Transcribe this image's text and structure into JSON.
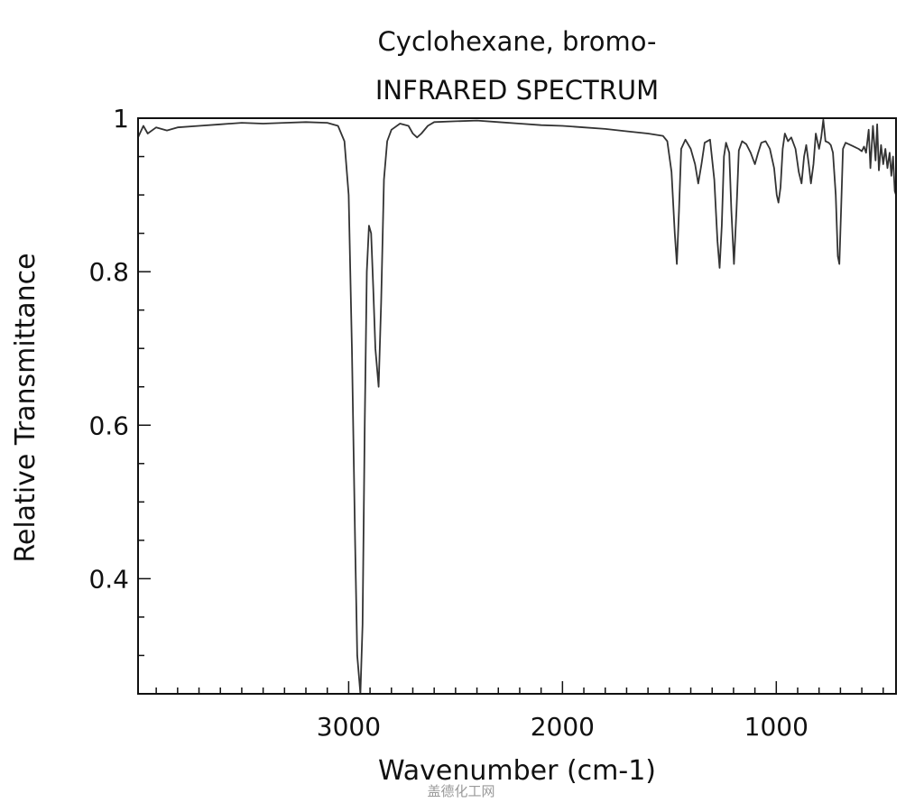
{
  "chart_data": {
    "type": "line",
    "title": "Cyclohexane, bromo-",
    "subtitle": "INFRARED SPECTRUM",
    "xlabel": "Wavenumber (cm-1)",
    "ylabel": "Relative Transmittance",
    "x_reversed": true,
    "xlim": [
      3985,
      440
    ],
    "ylim": [
      0.25,
      1.0
    ],
    "x_ticks": [
      {
        "value": 3000,
        "label": "3000"
      },
      {
        "value": 2000,
        "label": "2000"
      },
      {
        "value": 1000,
        "label": "1000"
      }
    ],
    "y_ticks": [
      {
        "value": 1.0,
        "label": "1"
      },
      {
        "value": 0.8,
        "label": "0.8"
      },
      {
        "value": 0.6,
        "label": "0.6"
      },
      {
        "value": 0.4,
        "label": "0.4"
      }
    ],
    "x_minor_step": 100,
    "y_minor_step": 0.05,
    "grid": false,
    "legend": "none",
    "line_color": "#333333",
    "series": [
      {
        "points": [
          [
            3985,
            0.975
          ],
          [
            3960,
            0.99
          ],
          [
            3940,
            0.98
          ],
          [
            3900,
            0.988
          ],
          [
            3850,
            0.984
          ],
          [
            3800,
            0.988
          ],
          [
            3700,
            0.99
          ],
          [
            3600,
            0.992
          ],
          [
            3500,
            0.994
          ],
          [
            3400,
            0.993
          ],
          [
            3300,
            0.994
          ],
          [
            3200,
            0.995
          ],
          [
            3100,
            0.994
          ],
          [
            3050,
            0.99
          ],
          [
            3020,
            0.97
          ],
          [
            3000,
            0.9
          ],
          [
            2985,
            0.7
          ],
          [
            2970,
            0.45
          ],
          [
            2960,
            0.3
          ],
          [
            2945,
            0.25
          ],
          [
            2935,
            0.34
          ],
          [
            2925,
            0.6
          ],
          [
            2915,
            0.8
          ],
          [
            2905,
            0.86
          ],
          [
            2895,
            0.85
          ],
          [
            2885,
            0.78
          ],
          [
            2875,
            0.7
          ],
          [
            2860,
            0.65
          ],
          [
            2848,
            0.76
          ],
          [
            2835,
            0.92
          ],
          [
            2820,
            0.97
          ],
          [
            2800,
            0.985
          ],
          [
            2760,
            0.993
          ],
          [
            2720,
            0.99
          ],
          [
            2700,
            0.98
          ],
          [
            2680,
            0.975
          ],
          [
            2660,
            0.98
          ],
          [
            2630,
            0.99
          ],
          [
            2600,
            0.995
          ],
          [
            2500,
            0.996
          ],
          [
            2400,
            0.997
          ],
          [
            2300,
            0.995
          ],
          [
            2200,
            0.993
          ],
          [
            2100,
            0.991
          ],
          [
            2000,
            0.99
          ],
          [
            1900,
            0.988
          ],
          [
            1800,
            0.986
          ],
          [
            1700,
            0.983
          ],
          [
            1600,
            0.98
          ],
          [
            1530,
            0.977
          ],
          [
            1510,
            0.97
          ],
          [
            1490,
            0.93
          ],
          [
            1475,
            0.85
          ],
          [
            1465,
            0.81
          ],
          [
            1455,
            0.88
          ],
          [
            1445,
            0.96
          ],
          [
            1425,
            0.972
          ],
          [
            1400,
            0.96
          ],
          [
            1380,
            0.94
          ],
          [
            1365,
            0.915
          ],
          [
            1350,
            0.94
          ],
          [
            1335,
            0.968
          ],
          [
            1310,
            0.972
          ],
          [
            1290,
            0.92
          ],
          [
            1275,
            0.84
          ],
          [
            1265,
            0.805
          ],
          [
            1255,
            0.86
          ],
          [
            1245,
            0.95
          ],
          [
            1235,
            0.968
          ],
          [
            1220,
            0.955
          ],
          [
            1210,
            0.88
          ],
          [
            1198,
            0.81
          ],
          [
            1186,
            0.88
          ],
          [
            1175,
            0.958
          ],
          [
            1160,
            0.97
          ],
          [
            1140,
            0.966
          ],
          [
            1120,
            0.955
          ],
          [
            1100,
            0.94
          ],
          [
            1085,
            0.955
          ],
          [
            1070,
            0.968
          ],
          [
            1050,
            0.97
          ],
          [
            1030,
            0.96
          ],
          [
            1010,
            0.935
          ],
          [
            998,
            0.9
          ],
          [
            990,
            0.89
          ],
          [
            980,
            0.91
          ],
          [
            970,
            0.96
          ],
          [
            960,
            0.98
          ],
          [
            945,
            0.97
          ],
          [
            930,
            0.975
          ],
          [
            910,
            0.96
          ],
          [
            895,
            0.93
          ],
          [
            882,
            0.915
          ],
          [
            870,
            0.95
          ],
          [
            860,
            0.965
          ],
          [
            848,
            0.94
          ],
          [
            838,
            0.915
          ],
          [
            826,
            0.94
          ],
          [
            815,
            0.98
          ],
          [
            800,
            0.96
          ],
          [
            790,
            0.975
          ],
          [
            780,
            0.998
          ],
          [
            770,
            0.97
          ],
          [
            755,
            0.968
          ],
          [
            745,
            0.965
          ],
          [
            735,
            0.955
          ],
          [
            722,
            0.9
          ],
          [
            712,
            0.82
          ],
          [
            705,
            0.81
          ],
          [
            697,
            0.88
          ],
          [
            688,
            0.96
          ],
          [
            676,
            0.968
          ],
          [
            660,
            0.966
          ],
          [
            645,
            0.964
          ],
          [
            630,
            0.962
          ],
          [
            615,
            0.96
          ],
          [
            600,
            0.957
          ],
          [
            590,
            0.963
          ],
          [
            580,
            0.955
          ],
          [
            568,
            0.985
          ],
          [
            560,
            0.935
          ],
          [
            548,
            0.99
          ],
          [
            536,
            0.945
          ],
          [
            528,
            0.992
          ],
          [
            520,
            0.932
          ],
          [
            510,
            0.965
          ],
          [
            500,
            0.94
          ],
          [
            490,
            0.96
          ],
          [
            480,
            0.935
          ],
          [
            470,
            0.955
          ],
          [
            462,
            0.925
          ],
          [
            454,
            0.95
          ],
          [
            446,
            0.905
          ],
          [
            440,
            0.9
          ]
        ]
      }
    ]
  },
  "watermark": "盖德化工网"
}
